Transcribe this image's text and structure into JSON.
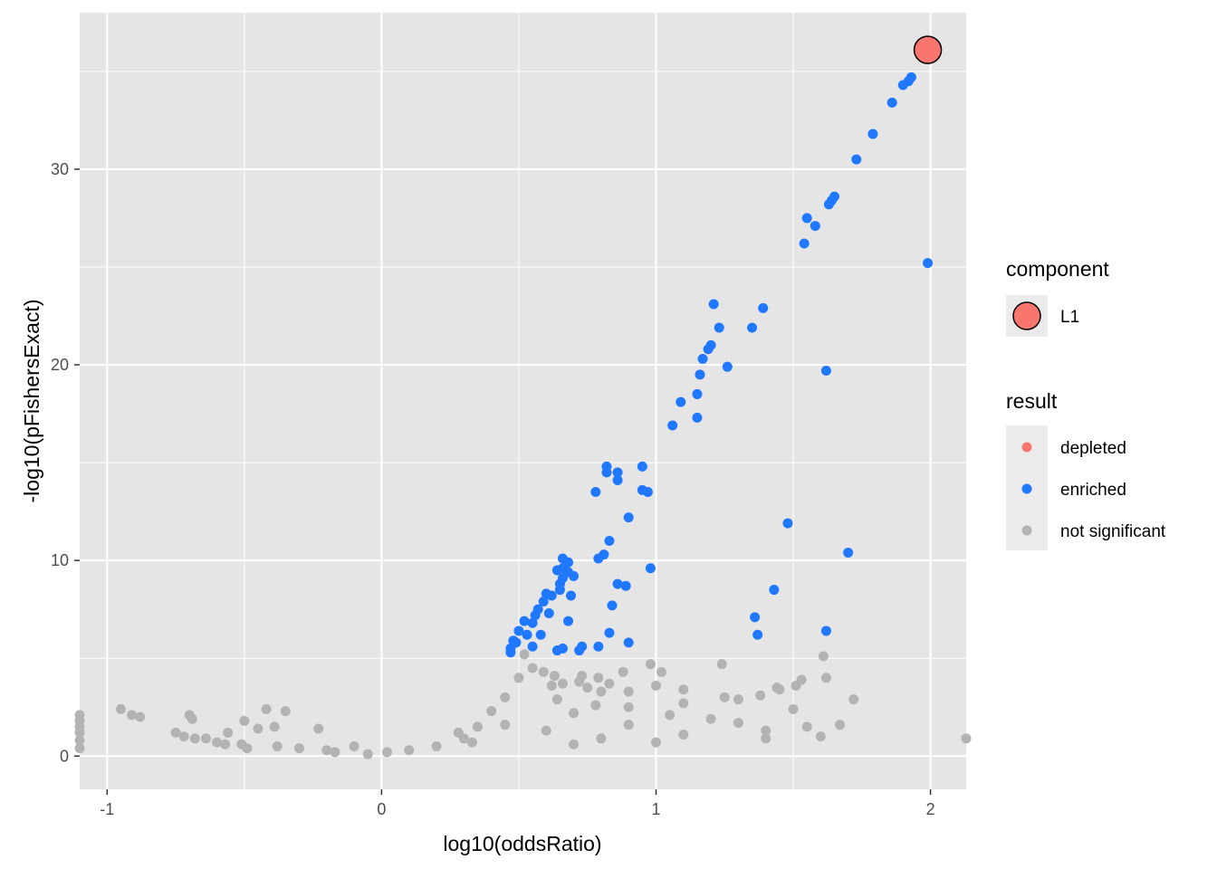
{
  "chart_data": {
    "type": "scatter",
    "title": "",
    "xlabel": "log10(oddsRatio)",
    "ylabel": "-log10(pFishersExact)",
    "xlim": [
      -1.1,
      2.13
    ],
    "ylim": [
      -1.7,
      38.0
    ],
    "x_ticks": [
      -1,
      0,
      1,
      2
    ],
    "x_tick_labels": [
      "-1",
      "0",
      "1",
      "2"
    ],
    "y_ticks": [
      0,
      10,
      20,
      30
    ],
    "y_tick_labels": [
      "0",
      "10",
      "20",
      "30"
    ],
    "grid": true,
    "legend_position": "right",
    "colors": {
      "panel_bg": "#e5e5e5",
      "grid": "#ffffff",
      "depleted": "#f8766d",
      "enriched": "#1f78ff",
      "not_significant": "#b3b3b3",
      "component_L1": "#f8766d"
    },
    "legends": {
      "component": {
        "title": "component",
        "items": [
          {
            "label": "L1"
          }
        ]
      },
      "result": {
        "title": "result",
        "items": [
          {
            "label": "depleted"
          },
          {
            "label": "enriched"
          },
          {
            "label": "not significant"
          }
        ]
      }
    },
    "series": [
      {
        "name": "enriched",
        "points": [
          [
            1.93,
            34.7
          ],
          [
            1.92,
            34.5
          ],
          [
            1.9,
            34.3
          ],
          [
            1.86,
            33.4
          ],
          [
            1.79,
            31.8
          ],
          [
            1.73,
            30.5
          ],
          [
            1.98,
            35.9
          ],
          [
            1.99,
            25.2
          ],
          [
            1.65,
            28.6
          ],
          [
            1.64,
            28.4
          ],
          [
            1.63,
            28.2
          ],
          [
            1.55,
            27.5
          ],
          [
            1.58,
            27.1
          ],
          [
            1.54,
            26.2
          ],
          [
            1.21,
            23.1
          ],
          [
            1.39,
            22.9
          ],
          [
            1.23,
            21.9
          ],
          [
            1.35,
            21.9
          ],
          [
            1.2,
            21.0
          ],
          [
            1.19,
            20.8
          ],
          [
            1.17,
            20.3
          ],
          [
            1.26,
            19.9
          ],
          [
            1.62,
            19.7
          ],
          [
            1.16,
            19.5
          ],
          [
            1.15,
            18.5
          ],
          [
            1.09,
            18.1
          ],
          [
            1.15,
            17.3
          ],
          [
            1.06,
            16.9
          ],
          [
            0.82,
            14.8
          ],
          [
            0.95,
            14.8
          ],
          [
            0.82,
            14.5
          ],
          [
            0.86,
            14.5
          ],
          [
            0.86,
            14.1
          ],
          [
            0.95,
            13.6
          ],
          [
            0.97,
            13.5
          ],
          [
            0.78,
            13.5
          ],
          [
            0.9,
            12.2
          ],
          [
            1.48,
            11.9
          ],
          [
            0.83,
            11.0
          ],
          [
            1.7,
            10.4
          ],
          [
            0.81,
            10.3
          ],
          [
            0.79,
            10.1
          ],
          [
            0.66,
            10.1
          ],
          [
            0.68,
            9.9
          ],
          [
            0.66,
            9.6
          ],
          [
            0.98,
            9.6
          ],
          [
            0.64,
            9.5
          ],
          [
            0.68,
            9.4
          ],
          [
            0.7,
            9.2
          ],
          [
            0.66,
            9.1
          ],
          [
            0.65,
            8.8
          ],
          [
            0.86,
            8.8
          ],
          [
            0.89,
            8.7
          ],
          [
            0.65,
            8.5
          ],
          [
            1.43,
            8.5
          ],
          [
            0.69,
            8.2
          ],
          [
            0.6,
            8.3
          ],
          [
            0.62,
            8.2
          ],
          [
            0.59,
            7.9
          ],
          [
            0.57,
            7.5
          ],
          [
            0.84,
            7.7
          ],
          [
            0.61,
            7.3
          ],
          [
            0.56,
            7.2
          ],
          [
            0.52,
            6.9
          ],
          [
            0.55,
            6.8
          ],
          [
            0.68,
            6.9
          ],
          [
            1.36,
            7.1
          ],
          [
            0.5,
            6.4
          ],
          [
            0.53,
            6.2
          ],
          [
            0.58,
            6.2
          ],
          [
            0.83,
            6.3
          ],
          [
            1.62,
            6.4
          ],
          [
            1.37,
            6.2
          ],
          [
            0.48,
            5.9
          ],
          [
            0.49,
            5.8
          ],
          [
            0.47,
            5.5
          ],
          [
            0.55,
            5.6
          ],
          [
            0.64,
            5.4
          ],
          [
            0.66,
            5.5
          ],
          [
            0.73,
            5.6
          ],
          [
            0.79,
            5.6
          ],
          [
            0.9,
            5.8
          ],
          [
            0.72,
            5.4
          ],
          [
            0.47,
            5.3
          ]
        ]
      },
      {
        "name": "not significant",
        "points": [
          [
            -1.1,
            2.1
          ],
          [
            -1.1,
            1.8
          ],
          [
            -1.1,
            1.5
          ],
          [
            -1.1,
            1.2
          ],
          [
            -1.1,
            0.8
          ],
          [
            -1.1,
            0.4
          ],
          [
            -0.95,
            2.4
          ],
          [
            -0.91,
            2.1
          ],
          [
            -0.88,
            2.0
          ],
          [
            -0.75,
            1.2
          ],
          [
            -0.72,
            1.0
          ],
          [
            -0.7,
            2.1
          ],
          [
            -0.69,
            1.9
          ],
          [
            -0.68,
            0.9
          ],
          [
            -0.64,
            0.9
          ],
          [
            -0.6,
            0.7
          ],
          [
            -0.57,
            0.6
          ],
          [
            -0.56,
            1.2
          ],
          [
            -0.51,
            0.6
          ],
          [
            -0.49,
            0.4
          ],
          [
            -0.5,
            1.8
          ],
          [
            -0.45,
            1.4
          ],
          [
            -0.42,
            2.4
          ],
          [
            -0.39,
            1.5
          ],
          [
            -0.35,
            2.3
          ],
          [
            -0.38,
            0.5
          ],
          [
            -0.3,
            0.4
          ],
          [
            -0.23,
            1.4
          ],
          [
            -0.2,
            0.3
          ],
          [
            -0.17,
            0.2
          ],
          [
            -0.1,
            0.5
          ],
          [
            -0.05,
            0.1
          ],
          [
            0.02,
            0.2
          ],
          [
            0.1,
            0.3
          ],
          [
            0.2,
            0.5
          ],
          [
            0.3,
            0.9
          ],
          [
            0.35,
            1.5
          ],
          [
            0.4,
            2.3
          ],
          [
            0.45,
            3.0
          ],
          [
            0.5,
            4.0
          ],
          [
            0.55,
            4.5
          ],
          [
            0.52,
            5.2
          ],
          [
            0.72,
            3.8
          ],
          [
            0.75,
            3.5
          ],
          [
            0.8,
            3.3
          ],
          [
            0.9,
            3.3
          ],
          [
            1.0,
            3.6
          ],
          [
            1.1,
            3.4
          ],
          [
            1.25,
            3.0
          ],
          [
            0.45,
            1.6
          ],
          [
            0.7,
            2.2
          ],
          [
            0.9,
            2.5
          ],
          [
            1.1,
            2.7
          ],
          [
            1.3,
            2.9
          ],
          [
            0.6,
            1.3
          ],
          [
            0.9,
            1.6
          ],
          [
            1.2,
            1.9
          ],
          [
            1.5,
            2.4
          ],
          [
            0.8,
            0.9
          ],
          [
            1.1,
            1.1
          ],
          [
            1.4,
            1.3
          ],
          [
            1.67,
            1.6
          ],
          [
            0.7,
            0.6
          ],
          [
            1.0,
            0.7
          ],
          [
            1.4,
            0.9
          ],
          [
            1.6,
            1.0
          ],
          [
            1.24,
            4.7
          ],
          [
            0.98,
            4.7
          ],
          [
            1.61,
            5.1
          ],
          [
            1.62,
            4.0
          ],
          [
            1.72,
            2.9
          ],
          [
            1.53,
            3.9
          ],
          [
            1.51,
            3.6
          ],
          [
            1.45,
            3.4
          ],
          [
            2.13,
            0.9
          ],
          [
            0.63,
            4.1
          ],
          [
            0.66,
            3.7
          ],
          [
            0.73,
            4.1
          ],
          [
            0.79,
            4.0
          ],
          [
            0.83,
            3.7
          ],
          [
            0.88,
            4.3
          ],
          [
            1.02,
            4.3
          ],
          [
            1.44,
            3.5
          ],
          [
            1.38,
            3.1
          ],
          [
            0.59,
            4.3
          ],
          [
            0.62,
            3.6
          ],
          [
            0.64,
            2.9
          ],
          [
            0.78,
            2.6
          ],
          [
            1.05,
            2.1
          ],
          [
            1.3,
            1.7
          ],
          [
            1.55,
            1.5
          ],
          [
            0.28,
            1.2
          ],
          [
            0.33,
            0.7
          ]
        ]
      }
    ],
    "highlighted": [
      {
        "component": "L1",
        "x": 1.99,
        "y": 36.1
      }
    ]
  }
}
